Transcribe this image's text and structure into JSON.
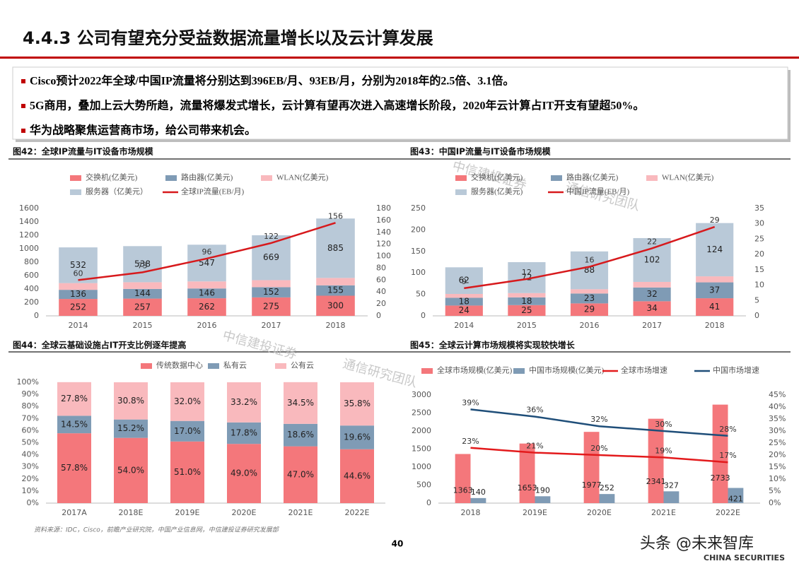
{
  "header": {
    "title": "4.4.3 公司有望充分受益数据流量增长以及云计算发展"
  },
  "bullets": [
    "Cisco预计2022年全球/中国IP流量将分别达到396EB/月、93EB/月，分别为2018年的2.5倍、3.1倍。",
    "5G商用，叠加上云大势所趋，流量将爆发式增长，云计算有望再次进入高速增长阶段，2020年云计算占IT开支有望超50%。",
    "华为战略聚焦运营商市场，给公司带来机会。"
  ],
  "chart_data": [
    {
      "type": "bar",
      "stacked": true,
      "title": "图42：全球IP流量与IT设备市场规模",
      "categories": [
        "2014",
        "2015",
        "2016",
        "2017",
        "2018"
      ],
      "series": [
        {
          "name": "交换机(亿美元)",
          "color": "#f4777b",
          "values": [
            252,
            257,
            262,
            275,
            300
          ]
        },
        {
          "name": "路由器(亿美元)",
          "color": "#7f9bb5",
          "values": [
            136,
            144,
            146,
            152,
            155
          ]
        },
        {
          "name": "WLAN(亿美元)",
          "color": "#f9b9bd",
          "values": [
            100,
            100,
            105,
            105,
            110
          ],
          "labels": false
        },
        {
          "name": "服务器（亿美元）",
          "color": "#b9c9d8",
          "values": [
            532,
            538,
            547,
            669,
            885
          ]
        },
        {
          "name": "全球IP流量(EB/月)",
          "color": "#d7191c",
          "type": "line",
          "axis": "y2",
          "values": [
            60,
            73,
            96,
            122,
            156
          ]
        }
      ],
      "ylim": [
        0,
        1600
      ],
      "yticks": [
        0,
        200,
        400,
        600,
        800,
        1000,
        1200,
        1400,
        1600
      ],
      "y2lim": [
        0,
        180
      ],
      "y2ticks": [
        0,
        20,
        40,
        60,
        80,
        100,
        120,
        140,
        160,
        180
      ]
    },
    {
      "type": "bar",
      "stacked": true,
      "title": "图43：中国IP流量与IT设备市场规模",
      "categories": [
        "2014",
        "2015",
        "2016",
        "2017",
        "2018"
      ],
      "series": [
        {
          "name": "交换机(亿美元)",
          "color": "#f4777b",
          "values": [
            24,
            25,
            29,
            34,
            41
          ]
        },
        {
          "name": "路由器(亿美元)",
          "color": "#7f9bb5",
          "values": [
            18,
            18,
            23,
            32,
            37
          ]
        },
        {
          "name": "WLAN(亿美元)",
          "color": "#f9b9bd",
          "values": [
            9,
            10,
            10,
            13,
            14
          ],
          "labels": false
        },
        {
          "name": "服务器(亿美元)",
          "color": "#b9c9d8",
          "values": [
            62,
            72,
            88,
            102,
            124
          ]
        },
        {
          "name": "中国IP流量(EB/月)",
          "color": "#d7191c",
          "type": "line",
          "axis": "y2",
          "values": [
            9,
            12,
            16,
            22,
            29
          ]
        }
      ],
      "ylim": [
        0,
        250
      ],
      "yticks": [
        0,
        50,
        100,
        150,
        200,
        250
      ],
      "y2lim": [
        0,
        35
      ],
      "y2ticks": [
        0,
        5,
        10,
        15,
        20,
        25,
        30,
        35
      ]
    },
    {
      "type": "bar",
      "stacked": true,
      "title": "图44：全球云基础设施占IT开支比例逐年提高",
      "categories": [
        "2017A",
        "2018E",
        "2019E",
        "2020E",
        "2021E",
        "2022E"
      ],
      "series": [
        {
          "name": "传统数据中心",
          "color": "#f4777b",
          "values": [
            57.8,
            54.0,
            51.0,
            49.0,
            47.0,
            44.6
          ],
          "value_labels": [
            "57.8%",
            "54.0%",
            "51.0%",
            "49.0%",
            "47.0%",
            "44.6%"
          ]
        },
        {
          "name": "私有云",
          "color": "#7f9bb5",
          "values": [
            14.5,
            15.2,
            17.0,
            17.8,
            18.6,
            19.6
          ],
          "value_labels": [
            "14.5%",
            "15.2%",
            "17.0%",
            "17.8%",
            "18.6%",
            "19.6%"
          ]
        },
        {
          "name": "公有云",
          "color": "#f9b9bd",
          "values": [
            27.8,
            30.8,
            32.0,
            33.2,
            34.5,
            35.8
          ],
          "value_labels": [
            "27.8%",
            "30.8%",
            "32.0%",
            "33.2%",
            "34.5%",
            "35.8%"
          ]
        }
      ],
      "ylim": [
        0,
        100
      ],
      "yticks": [
        {
          "value": 0,
          "label": "0%"
        },
        {
          "value": 10,
          "label": "10%"
        },
        {
          "value": 20,
          "label": "20%"
        },
        {
          "value": 30,
          "label": "30%"
        },
        {
          "value": 40,
          "label": "40%"
        },
        {
          "value": 50,
          "label": "50%"
        },
        {
          "value": 60,
          "label": "60%"
        },
        {
          "value": 70,
          "label": "70%"
        },
        {
          "value": 80,
          "label": "80%"
        },
        {
          "value": 90,
          "label": "90%"
        },
        {
          "value": 100,
          "label": "100%"
        }
      ]
    },
    {
      "type": "bar",
      "stacked": false,
      "title": "图45：全球云计算市场规模将实现较快增长",
      "categories": [
        "2018",
        "2019E",
        "2020E",
        "2021E",
        "2022E"
      ],
      "series": [
        {
          "name": "全球市场规模(亿美元)",
          "color": "#f4777b",
          "values": [
            1363,
            1653,
            1977,
            2341,
            2733
          ]
        },
        {
          "name": "中国市场规模(亿美元)",
          "color": "#7f9bb5",
          "values": [
            140,
            190,
            252,
            327,
            421
          ]
        },
        {
          "name": "全球市场增速",
          "color": "#e31a1c",
          "type": "line",
          "axis": "y2",
          "values": [
            23,
            21,
            20,
            19,
            17
          ],
          "value_labels": [
            "23%",
            "21%",
            "20%",
            "19%",
            "17%"
          ]
        },
        {
          "name": "中国市场增速",
          "color": "#1f4e79",
          "type": "line",
          "axis": "y2",
          "values": [
            39,
            36,
            32,
            30,
            28
          ],
          "value_labels": [
            "39%",
            "36%",
            "32%",
            "30%",
            "28%"
          ]
        }
      ],
      "ylim": [
        0,
        3000
      ],
      "yticks": [
        0,
        500,
        1000,
        1500,
        2000,
        2500,
        3000
      ],
      "y2lim": [
        0,
        45
      ],
      "y2ticks": [
        {
          "value": 0,
          "label": "0%"
        },
        {
          "value": 5,
          "label": "5%"
        },
        {
          "value": 10,
          "label": "10%"
        },
        {
          "value": 15,
          "label": "15%"
        },
        {
          "value": 20,
          "label": "20%"
        },
        {
          "value": 25,
          "label": "25%"
        },
        {
          "value": 30,
          "label": "30%"
        },
        {
          "value": 35,
          "label": "35%"
        },
        {
          "value": 40,
          "label": "40%"
        },
        {
          "value": 45,
          "label": "45%"
        }
      ]
    }
  ],
  "source": "资料来源：IDC，Cisco，前瞻产业研究院，中国产业信息网，中信建投证券研究发展部",
  "page_number": "40",
  "watermark": {
    "company": "中信建投证券",
    "team": "通信研究团队",
    "platform": "头条 @未来智库",
    "brand": "CHINA SECURITIES"
  }
}
